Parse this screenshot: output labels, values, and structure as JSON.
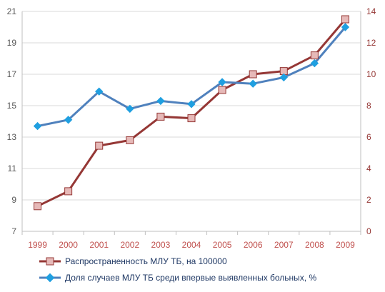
{
  "chart_data": {
    "type": "line",
    "x": [
      "1999",
      "2000",
      "2001",
      "2002",
      "2003",
      "2004",
      "2005",
      "2006",
      "2007",
      "2008",
      "2009"
    ],
    "y_left": {
      "ylim": [
        7,
        21
      ],
      "ticks": [
        7,
        9,
        11,
        13,
        15,
        17,
        19,
        21
      ]
    },
    "y_right": {
      "ylim": [
        0,
        14
      ],
      "ticks": [
        0,
        2,
        4,
        6,
        8,
        10,
        12,
        14
      ]
    },
    "grid": true,
    "legend_position": "bottom",
    "series": [
      {
        "name": "Распространенность МЛУ ТБ, на 100000",
        "axis": "right",
        "color": "#953735",
        "marker": "square",
        "marker_fill": "#e6b9b8",
        "values": [
          1.6,
          2.55,
          5.45,
          5.8,
          7.3,
          7.2,
          9.0,
          10.0,
          10.2,
          11.2,
          13.5
        ]
      },
      {
        "name": "Доля случаев МЛУ ТБ среди впервые выявленных больных, %",
        "axis": "left",
        "color": "#4f81bd",
        "marker": "diamond",
        "marker_fill": "#1f9fe0",
        "values": [
          13.7,
          14.1,
          15.9,
          14.8,
          15.3,
          15.1,
          16.5,
          16.4,
          16.8,
          17.7,
          20.0
        ]
      }
    ],
    "colors": {
      "left_tick_text": "#595959",
      "right_tick_text": "#953735",
      "x_tick_text": "#c0504d",
      "grid": "#d9d9d9",
      "axis": "#bfbfbf"
    }
  }
}
